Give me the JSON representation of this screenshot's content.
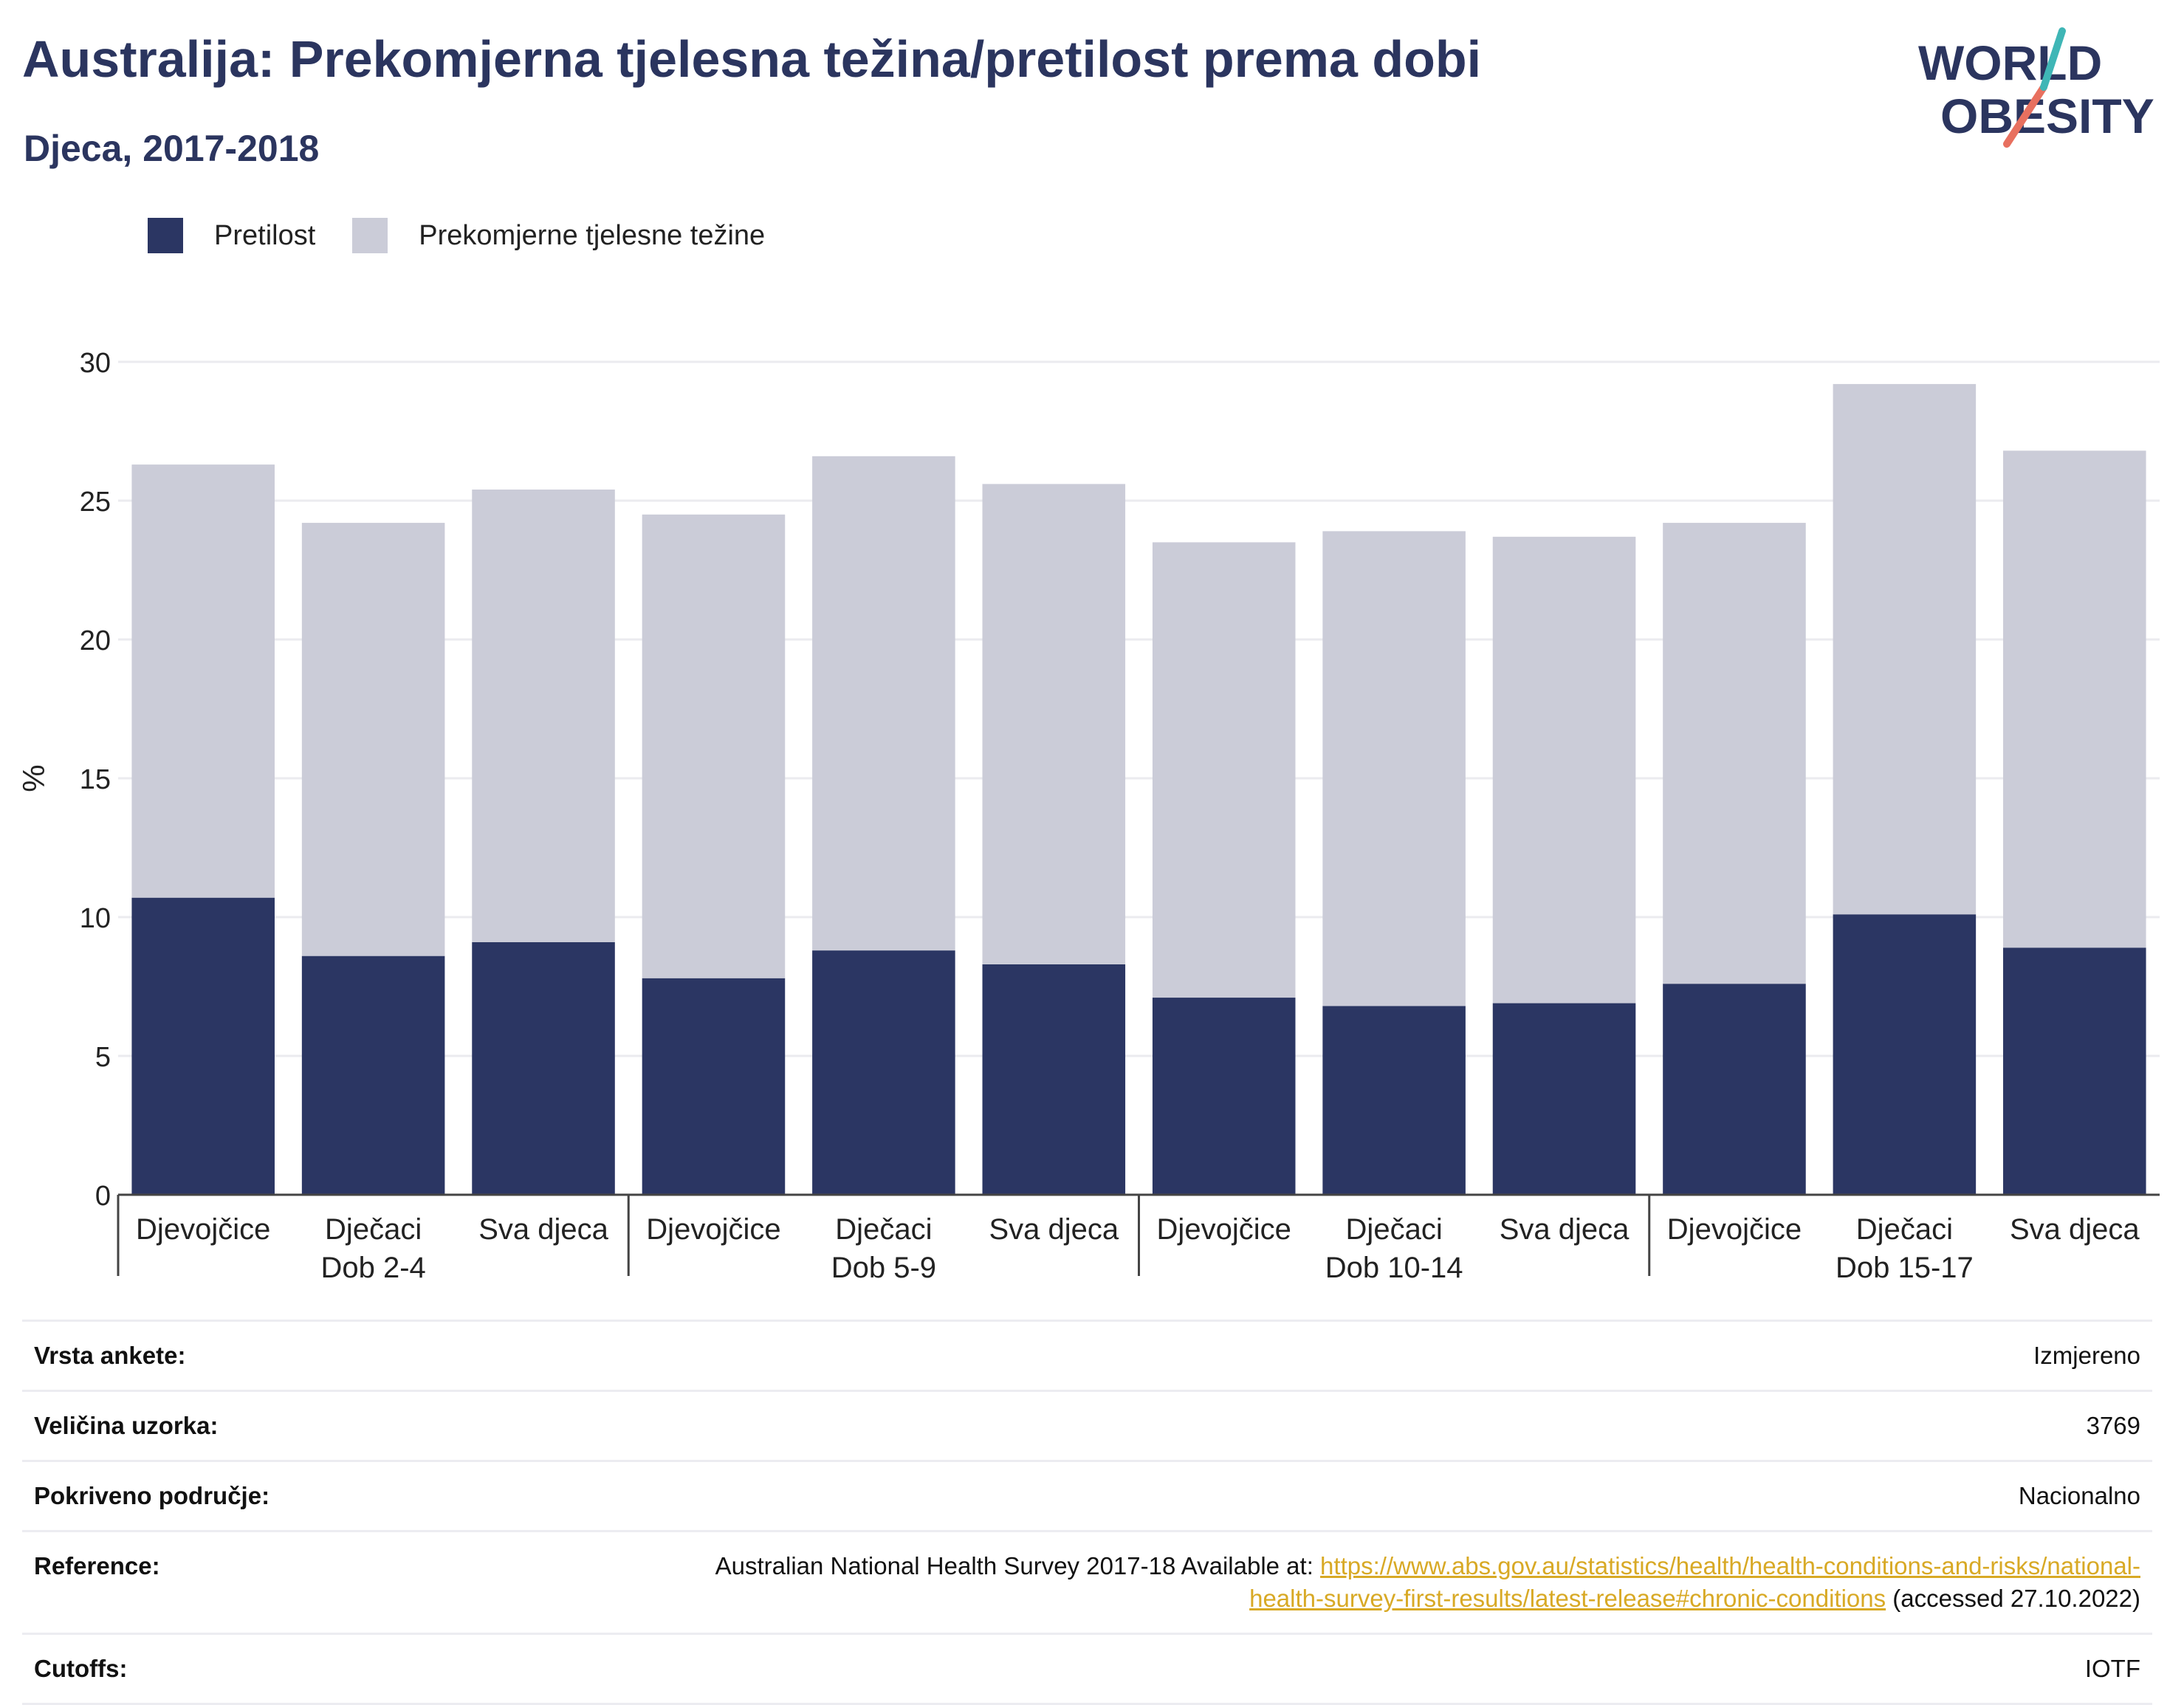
{
  "header": {
    "title": "Australija: Prekomjerna tjelesna težina/pretilost prema dobi",
    "subtitle": "Djeca, 2017-2018"
  },
  "logo": {
    "line1": "WORLD",
    "line2": "OBESITY",
    "colors": {
      "text": "#2b355f",
      "accent_teal": "#3fb6b6",
      "accent_coral": "#e8705f"
    }
  },
  "legend": {
    "items": [
      {
        "label": "Pretilost",
        "color": "#2b3663"
      },
      {
        "label": "Prekomjerne tjelesne težine",
        "color": "#cbccd8"
      }
    ]
  },
  "chart_data": {
    "type": "bar",
    "stacked": true,
    "ylabel": "%",
    "ylim": [
      0,
      30
    ],
    "yticks": [
      0,
      5,
      10,
      15,
      20,
      25,
      30
    ],
    "grid": true,
    "legend_position": "top-left",
    "groups": [
      "Dob 2-4",
      "Dob 5-9",
      "Dob 10-14",
      "Dob 15-17"
    ],
    "categories": [
      "Djevojčice",
      "Dječaci",
      "Sva djeca",
      "Djevojčice",
      "Dječaci",
      "Sva djeca",
      "Djevojčice",
      "Dječaci",
      "Sva djeca",
      "Djevojčice",
      "Dječaci",
      "Sva djeca"
    ],
    "series": [
      {
        "name": "Pretilost",
        "color": "#2b3663",
        "values": [
          10.7,
          8.6,
          9.1,
          7.8,
          8.8,
          8.3,
          7.1,
          6.8,
          6.9,
          7.6,
          10.1,
          8.9
        ]
      },
      {
        "name": "Prekomjerne tjelesne težine",
        "color": "#cbccd8",
        "values": [
          15.6,
          15.6,
          16.3,
          16.7,
          17.8,
          17.3,
          16.4,
          17.1,
          16.8,
          16.6,
          19.1,
          17.9
        ]
      }
    ]
  },
  "meta": {
    "survey_type": {
      "label": "Vrsta ankete:",
      "value": "Izmjereno"
    },
    "sample_size": {
      "label": "Veličina uzorka:",
      "value": "3769"
    },
    "coverage": {
      "label": "Pokriveno područje:",
      "value": "Nacionalno"
    },
    "reference": {
      "label": "Reference:",
      "text_before": "Australian National Health Survey 2017-18 Available at: ",
      "link_line1": "https://www.abs.gov.au/statistics/health/health-conditions-and-risks/national-",
      "link_line2": "health-survey-first-results/latest-release#chronic-conditions",
      "text_after": " (accessed 27.10.2022)"
    },
    "cutoffs": {
      "label": "Cutoffs:",
      "value": "IOTF"
    }
  }
}
